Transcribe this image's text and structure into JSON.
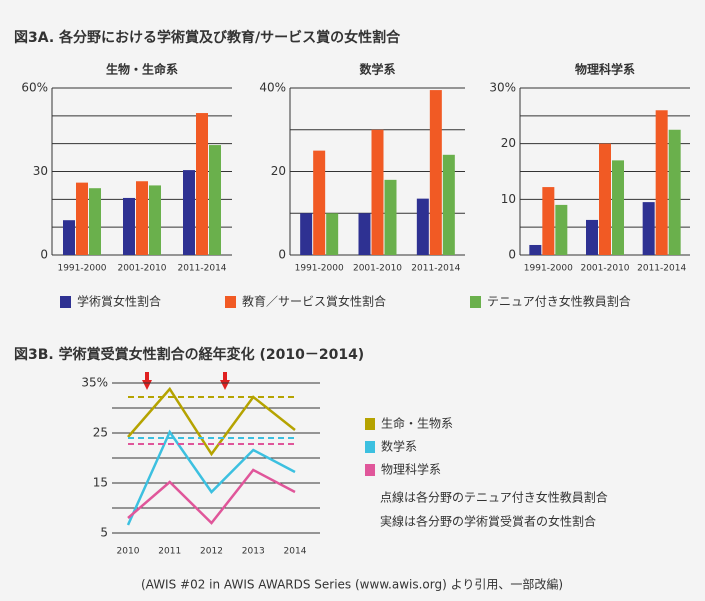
{
  "title_3a": "図3A. 各分野における学術賞及び教育/サービス賞の女性割合",
  "source": "(AWIS #02 in AWIS AWARDS Series (www.awis.org) より引用、一部改編)",
  "chart_data": [
    {
      "type": "bar",
      "title": "生物・生命系",
      "categories": [
        "1991-2000",
        "2001-2010",
        "2011-2014"
      ],
      "series": [
        {
          "name": "学術賞女性割合",
          "color": "#2e3192",
          "values": [
            12.5,
            20.5,
            30.5
          ]
        },
        {
          "name": "教育／サービス賞女性割合",
          "color": "#f15a24",
          "values": [
            26,
            26.5,
            51
          ]
        },
        {
          "name": "テニュア付き女性教員割合",
          "color": "#6ab04c",
          "values": [
            24,
            25,
            39.5
          ]
        }
      ],
      "ylim": [
        0,
        60
      ],
      "yticks": [
        0,
        30,
        {
          "value": 60,
          "label": "60%"
        }
      ],
      "minor_yticks": [
        10,
        20,
        40,
        50
      ],
      "grid": true
    },
    {
      "type": "bar",
      "title": "数学系",
      "categories": [
        "1991-2000",
        "2001-2010",
        "2011-2014"
      ],
      "series": [
        {
          "color": "#2e3192",
          "values": [
            10,
            10,
            13.5
          ]
        },
        {
          "color": "#f15a24",
          "values": [
            25,
            30,
            39.5
          ]
        },
        {
          "color": "#6ab04c",
          "values": [
            10,
            18,
            24
          ]
        }
      ],
      "ylim": [
        0,
        40
      ],
      "yticks": [
        0,
        20,
        {
          "value": 40,
          "label": "40%"
        }
      ],
      "minor_yticks": [
        10,
        30
      ],
      "grid": true
    },
    {
      "type": "bar",
      "title": "物理科学系",
      "categories": [
        "1991-2000",
        "2001-2010",
        "2011-2014"
      ],
      "series": [
        {
          "color": "#2e3192",
          "values": [
            1.8,
            6.3,
            9.5
          ]
        },
        {
          "color": "#f15a24",
          "values": [
            12.2,
            20,
            26
          ]
        },
        {
          "color": "#6ab04c",
          "values": [
            9,
            17,
            22.5
          ]
        }
      ],
      "ylim": [
        0,
        30
      ],
      "yticks": [
        0,
        10,
        20,
        {
          "value": 30,
          "label": "30%"
        }
      ],
      "minor_yticks": [
        5,
        15,
        25
      ],
      "grid": true
    },
    {
      "type": "line",
      "title": "図3B. 学術賞受賞女性割合の経年変化 (2010－2014)",
      "categories": [
        "2010",
        "2011",
        "2012",
        "2013",
        "2014"
      ],
      "series": [
        {
          "name": "生命・生物系",
          "color": "#b5a300",
          "values": [
            24.2,
            33.8,
            20.8,
            32.2,
            25.6
          ],
          "tenure": 32.2
        },
        {
          "name": "数学系",
          "color": "#3cc0e0",
          "values": [
            6.6,
            25.2,
            13.2,
            21.6,
            17.2
          ],
          "tenure": 24
        },
        {
          "name": "物理科学系",
          "color": "#e0569a",
          "values": [
            8,
            15.2,
            7,
            17.6,
            13.2
          ],
          "tenure": 22.8
        }
      ],
      "ylim": [
        5,
        35
      ],
      "yticks": [
        5,
        15,
        25,
        {
          "value": 35,
          "label": "35%"
        }
      ],
      "minor_yticks": [
        10,
        20,
        30
      ],
      "grid": true,
      "notes": [
        "点線は各分野のテニュア付き女性教員割合",
        "実線は各分野の学術賞受賞者の女性割合"
      ]
    }
  ]
}
